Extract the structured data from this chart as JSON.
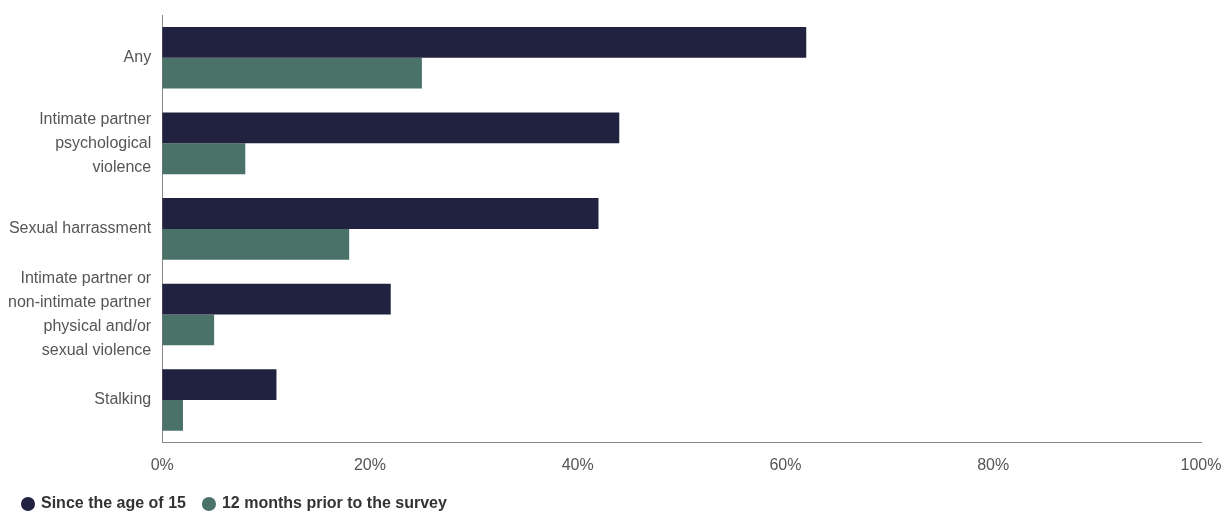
{
  "chart_data": {
    "type": "bar",
    "orientation": "horizontal",
    "categories": [
      "Any",
      "Intimate partner psychological violence",
      "Sexual harrassment",
      "Intimate partner or non-intimate partner physical and/or sexual violence",
      "Stalking"
    ],
    "series": [
      {
        "name": "Since the age of 15",
        "color": "#20223f",
        "values": [
          62,
          44,
          42,
          22,
          11
        ]
      },
      {
        "name": "12 months prior to the survey",
        "color": "#4a7268",
        "values": [
          25,
          8,
          18,
          5,
          2
        ]
      }
    ],
    "xlim": [
      0,
      100
    ],
    "xticks": [
      {
        "value": 0,
        "label": "0%"
      },
      {
        "value": 20,
        "label": "20%"
      },
      {
        "value": 40,
        "label": "40%"
      },
      {
        "value": 60,
        "label": "60%"
      },
      {
        "value": 80,
        "label": "80%"
      },
      {
        "value": 100,
        "label": "100%"
      }
    ],
    "grid": false,
    "legend": "bottom left"
  }
}
